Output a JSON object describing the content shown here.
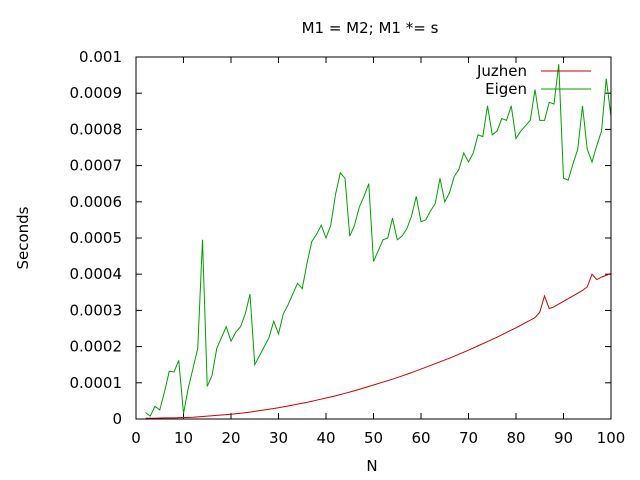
{
  "chart_data": {
    "type": "line",
    "title": "M1 = M2; M1 *= s",
    "xlabel": "N",
    "ylabel": "Seconds",
    "xlim": [
      0,
      100
    ],
    "ylim": [
      0,
      0.001
    ],
    "x_ticks": [
      "0",
      "10",
      "20",
      "30",
      "40",
      "50",
      "60",
      "70",
      "80",
      "90",
      "100"
    ],
    "y_ticks": [
      "0",
      "0.0001",
      "0.0002",
      "0.0003",
      "0.0004",
      "0.0005",
      "0.0006",
      "0.0007",
      "0.0008",
      "0.0009",
      "0.001"
    ],
    "grid": false,
    "legend_position": "top-right",
    "series": [
      {
        "name": "Juzhen",
        "color": "#cc0000",
        "points": [
          [
            2,
            2e-06
          ],
          [
            4,
            2e-06
          ],
          [
            6,
            3e-06
          ],
          [
            8,
            3e-06
          ],
          [
            10,
            4e-06
          ],
          [
            12,
            5e-06
          ],
          [
            14,
            7e-06
          ],
          [
            16,
            9e-06
          ],
          [
            18,
            1.1e-05
          ],
          [
            20,
            1.3e-05
          ],
          [
            22,
            1.6e-05
          ],
          [
            24,
            1.9e-05
          ],
          [
            26,
            2.3e-05
          ],
          [
            28,
            2.7e-05
          ],
          [
            30,
            3.1e-05
          ],
          [
            32,
            3.6e-05
          ],
          [
            34,
            4.1e-05
          ],
          [
            36,
            4.6e-05
          ],
          [
            38,
            5.2e-05
          ],
          [
            40,
            5.8e-05
          ],
          [
            42,
            6.4e-05
          ],
          [
            44,
            7.1e-05
          ],
          [
            46,
            7.8e-05
          ],
          [
            48,
            8.6e-05
          ],
          [
            50,
            9.4e-05
          ],
          [
            52,
            0.000102
          ],
          [
            54,
            0.00011
          ],
          [
            56,
            0.000119
          ],
          [
            58,
            0.000128
          ],
          [
            60,
            0.000138
          ],
          [
            62,
            0.000148
          ],
          [
            64,
            0.000158
          ],
          [
            66,
            0.000168
          ],
          [
            68,
            0.000179
          ],
          [
            70,
            0.00019
          ],
          [
            72,
            0.000202
          ],
          [
            74,
            0.000214
          ],
          [
            76,
            0.000226
          ],
          [
            78,
            0.000239
          ],
          [
            80,
            0.000252
          ],
          [
            82,
            0.000266
          ],
          [
            84,
            0.00028
          ],
          [
            85,
            0.000295
          ],
          [
            86,
            0.00034
          ],
          [
            87,
            0.000305
          ],
          [
            88,
            0.00031
          ],
          [
            90,
            0.000325
          ],
          [
            92,
            0.00034
          ],
          [
            94,
            0.000355
          ],
          [
            95,
            0.000365
          ],
          [
            96,
            0.0004
          ],
          [
            97,
            0.000385
          ],
          [
            98,
            0.000392
          ],
          [
            100,
            0.000402
          ]
        ]
      },
      {
        "name": "Eigen",
        "color": "#00a000",
        "points": [
          [
            2,
            1.8e-05
          ],
          [
            3,
            8e-06
          ],
          [
            4,
            3.5e-05
          ],
          [
            5,
            2.5e-05
          ],
          [
            6,
            7.5e-05
          ],
          [
            7,
            0.000132
          ],
          [
            8,
            0.00013
          ],
          [
            9,
            0.000162
          ],
          [
            10,
            1.5e-05
          ],
          [
            11,
            8.5e-05
          ],
          [
            12,
            0.00014
          ],
          [
            13,
            0.000195
          ],
          [
            14,
            0.000495
          ],
          [
            15,
            9e-05
          ],
          [
            16,
            0.00012
          ],
          [
            17,
            0.000195
          ],
          [
            18,
            0.000225
          ],
          [
            19,
            0.000255
          ],
          [
            20,
            0.000215
          ],
          [
            21,
            0.00024
          ],
          [
            22,
            0.000255
          ],
          [
            23,
            0.00029
          ],
          [
            24,
            0.000345
          ],
          [
            25,
            0.00015
          ],
          [
            26,
            0.000175
          ],
          [
            27,
            0.0002
          ],
          [
            28,
            0.000225
          ],
          [
            29,
            0.00027
          ],
          [
            30,
            0.000235
          ],
          [
            31,
            0.00029
          ],
          [
            32,
            0.000315
          ],
          [
            33,
            0.000345
          ],
          [
            34,
            0.000375
          ],
          [
            35,
            0.00036
          ],
          [
            36,
            0.00043
          ],
          [
            37,
            0.00049
          ],
          [
            38,
            0.00051
          ],
          [
            39,
            0.000535
          ],
          [
            40,
            0.0005
          ],
          [
            41,
            0.000535
          ],
          [
            42,
            0.00062
          ],
          [
            43,
            0.00068
          ],
          [
            44,
            0.000665
          ],
          [
            45,
            0.000505
          ],
          [
            46,
            0.000535
          ],
          [
            47,
            0.000585
          ],
          [
            48,
            0.000615
          ],
          [
            49,
            0.00065
          ],
          [
            50,
            0.000435
          ],
          [
            51,
            0.000465
          ],
          [
            52,
            0.000495
          ],
          [
            53,
            0.0005
          ],
          [
            54,
            0.000555
          ],
          [
            55,
            0.000495
          ],
          [
            56,
            0.000505
          ],
          [
            57,
            0.000525
          ],
          [
            58,
            0.00056
          ],
          [
            59,
            0.000615
          ],
          [
            60,
            0.000545
          ],
          [
            61,
            0.00055
          ],
          [
            62,
            0.000575
          ],
          [
            63,
            0.000595
          ],
          [
            64,
            0.000665
          ],
          [
            65,
            0.0006
          ],
          [
            66,
            0.000625
          ],
          [
            67,
            0.00067
          ],
          [
            68,
            0.00069
          ],
          [
            69,
            0.000735
          ],
          [
            70,
            0.00071
          ],
          [
            71,
            0.000735
          ],
          [
            72,
            0.000785
          ],
          [
            73,
            0.00078
          ],
          [
            74,
            0.000865
          ],
          [
            75,
            0.000785
          ],
          [
            76,
            0.000795
          ],
          [
            77,
            0.00083
          ],
          [
            78,
            0.000825
          ],
          [
            79,
            0.000865
          ],
          [
            80,
            0.000775
          ],
          [
            81,
            0.000795
          ],
          [
            82,
            0.00081
          ],
          [
            83,
            0.000825
          ],
          [
            84,
            0.00091
          ],
          [
            85,
            0.000825
          ],
          [
            86,
            0.000825
          ],
          [
            87,
            0.000875
          ],
          [
            88,
            0.00087
          ],
          [
            89,
            0.00098
          ],
          [
            90,
            0.000665
          ],
          [
            91,
            0.00066
          ],
          [
            92,
            0.000705
          ],
          [
            93,
            0.000745
          ],
          [
            94,
            0.000865
          ],
          [
            95,
            0.000745
          ],
          [
            96,
            0.00071
          ],
          [
            97,
            0.000755
          ],
          [
            98,
            0.000795
          ],
          [
            99,
            0.00094
          ],
          [
            100,
            0.000835
          ]
        ]
      }
    ]
  }
}
